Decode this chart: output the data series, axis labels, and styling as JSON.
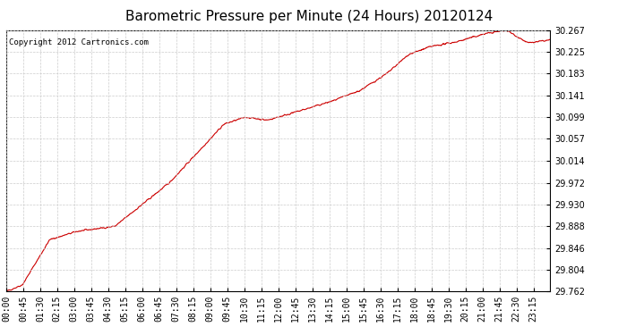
{
  "title": "Barometric Pressure per Minute (24 Hours) 20120124",
  "copyright_text": "Copyright 2012 Cartronics.com",
  "line_color": "#cc0000",
  "bg_color": "#ffffff",
  "grid_color": "#cccccc",
  "yticks": [
    29.762,
    29.804,
    29.846,
    29.888,
    29.93,
    29.972,
    30.014,
    30.057,
    30.099,
    30.141,
    30.183,
    30.225,
    30.267
  ],
  "ylim": [
    29.762,
    30.267
  ],
  "xtick_labels": [
    "00:00",
    "00:45",
    "01:30",
    "02:15",
    "03:00",
    "03:45",
    "04:30",
    "05:15",
    "06:00",
    "06:45",
    "07:30",
    "08:15",
    "09:00",
    "09:45",
    "10:30",
    "11:15",
    "12:00",
    "12:45",
    "13:30",
    "14:15",
    "15:00",
    "15:45",
    "16:30",
    "17:15",
    "18:00",
    "18:45",
    "19:30",
    "20:15",
    "21:00",
    "21:45",
    "22:30",
    "23:15"
  ],
  "title_fontsize": 11,
  "tick_fontsize": 7,
  "copyright_fontsize": 6.5
}
